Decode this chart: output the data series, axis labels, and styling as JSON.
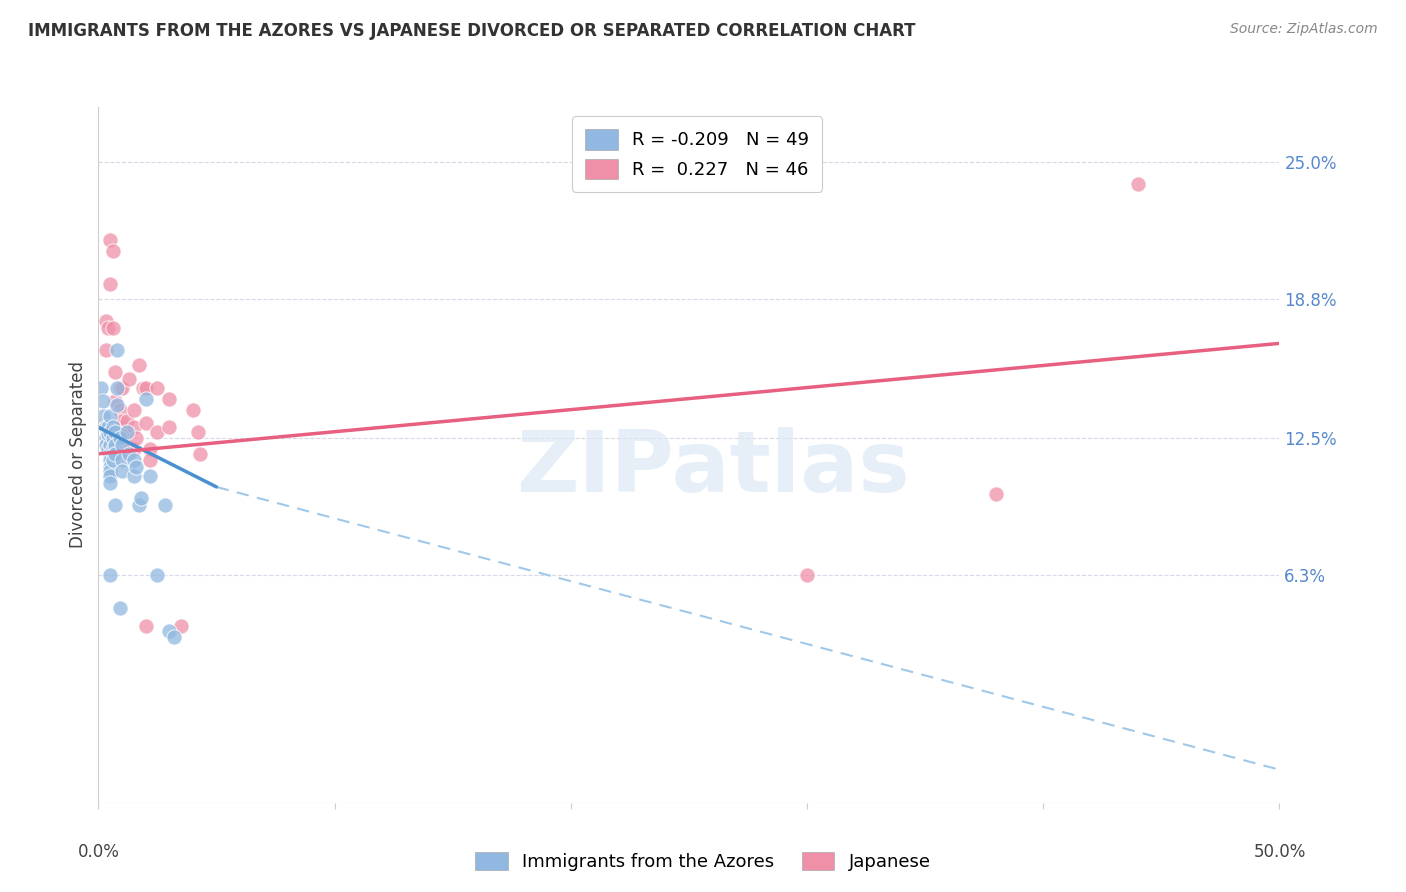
{
  "title": "IMMIGRANTS FROM THE AZORES VS JAPANESE DIVORCED OR SEPARATED CORRELATION CHART",
  "source": "Source: ZipAtlas.com",
  "ylabel": "Divorced or Separated",
  "right_axis_labels": [
    "25.0%",
    "18.8%",
    "12.5%",
    "6.3%"
  ],
  "legend_entries": [
    {
      "label_r": "R = -0.209",
      "label_n": "N = 49",
      "color": "#a8c8ea"
    },
    {
      "label_r": "R =  0.227",
      "label_n": "N = 46",
      "color": "#f4a8b8"
    }
  ],
  "watermark": "ZIPatlas",
  "azores_color": "#90b8e0",
  "japanese_color": "#f090a8",
  "azores_scatter": [
    [
      0.001,
      0.148
    ],
    [
      0.002,
      0.142
    ],
    [
      0.002,
      0.135
    ],
    [
      0.003,
      0.13
    ],
    [
      0.003,
      0.125
    ],
    [
      0.003,
      0.122
    ],
    [
      0.004,
      0.13
    ],
    [
      0.004,
      0.127
    ],
    [
      0.004,
      0.12
    ],
    [
      0.005,
      0.135
    ],
    [
      0.005,
      0.128
    ],
    [
      0.005,
      0.122
    ],
    [
      0.005,
      0.118
    ],
    [
      0.005,
      0.115
    ],
    [
      0.005,
      0.112
    ],
    [
      0.005,
      0.11
    ],
    [
      0.005,
      0.108
    ],
    [
      0.005,
      0.105
    ],
    [
      0.006,
      0.13
    ],
    [
      0.006,
      0.125
    ],
    [
      0.006,
      0.12
    ],
    [
      0.006,
      0.118
    ],
    [
      0.006,
      0.115
    ],
    [
      0.007,
      0.128
    ],
    [
      0.007,
      0.122
    ],
    [
      0.007,
      0.118
    ],
    [
      0.008,
      0.165
    ],
    [
      0.008,
      0.148
    ],
    [
      0.008,
      0.14
    ],
    [
      0.009,
      0.125
    ],
    [
      0.01,
      0.122
    ],
    [
      0.01,
      0.115
    ],
    [
      0.01,
      0.11
    ],
    [
      0.012,
      0.128
    ],
    [
      0.013,
      0.118
    ],
    [
      0.015,
      0.115
    ],
    [
      0.015,
      0.108
    ],
    [
      0.016,
      0.112
    ],
    [
      0.017,
      0.095
    ],
    [
      0.018,
      0.098
    ],
    [
      0.02,
      0.143
    ],
    [
      0.022,
      0.108
    ],
    [
      0.025,
      0.063
    ],
    [
      0.028,
      0.095
    ],
    [
      0.03,
      0.038
    ],
    [
      0.005,
      0.063
    ],
    [
      0.007,
      0.095
    ],
    [
      0.009,
      0.048
    ],
    [
      0.032,
      0.035
    ]
  ],
  "japanese_scatter": [
    [
      0.003,
      0.178
    ],
    [
      0.003,
      0.165
    ],
    [
      0.004,
      0.175
    ],
    [
      0.005,
      0.215
    ],
    [
      0.005,
      0.195
    ],
    [
      0.006,
      0.21
    ],
    [
      0.006,
      0.175
    ],
    [
      0.007,
      0.155
    ],
    [
      0.007,
      0.142
    ],
    [
      0.007,
      0.13
    ],
    [
      0.008,
      0.125
    ],
    [
      0.008,
      0.12
    ],
    [
      0.009,
      0.148
    ],
    [
      0.009,
      0.138
    ],
    [
      0.009,
      0.13
    ],
    [
      0.009,
      0.12
    ],
    [
      0.01,
      0.148
    ],
    [
      0.01,
      0.133
    ],
    [
      0.01,
      0.125
    ],
    [
      0.01,
      0.118
    ],
    [
      0.011,
      0.128
    ],
    [
      0.012,
      0.133
    ],
    [
      0.012,
      0.12
    ],
    [
      0.013,
      0.152
    ],
    [
      0.015,
      0.138
    ],
    [
      0.015,
      0.13
    ],
    [
      0.015,
      0.12
    ],
    [
      0.016,
      0.125
    ],
    [
      0.017,
      0.158
    ],
    [
      0.019,
      0.148
    ],
    [
      0.02,
      0.148
    ],
    [
      0.02,
      0.132
    ],
    [
      0.022,
      0.12
    ],
    [
      0.022,
      0.115
    ],
    [
      0.025,
      0.148
    ],
    [
      0.025,
      0.128
    ],
    [
      0.03,
      0.143
    ],
    [
      0.03,
      0.13
    ],
    [
      0.035,
      0.04
    ],
    [
      0.04,
      0.138
    ],
    [
      0.042,
      0.128
    ],
    [
      0.043,
      0.118
    ],
    [
      0.44,
      0.24
    ],
    [
      0.38,
      0.1
    ],
    [
      0.3,
      0.063
    ],
    [
      0.02,
      0.04
    ]
  ],
  "azores_line_solid": {
    "x0": 0.0,
    "y0": 0.13,
    "x1": 0.05,
    "y1": 0.103
  },
  "azores_line_dash": {
    "x0": 0.05,
    "y0": 0.103,
    "x1": 0.5,
    "y1": -0.025
  },
  "japanese_line": {
    "x0": 0.0,
    "y0": 0.118,
    "x1": 0.5,
    "y1": 0.168
  },
  "xlim": [
    0.0,
    0.5
  ],
  "ylim": [
    -0.04,
    0.275
  ],
  "xticks": [
    0.0,
    0.1,
    0.2,
    0.3,
    0.4,
    0.5
  ],
  "yticks_right": [
    0.25,
    0.188,
    0.125,
    0.063
  ],
  "grid_color": "#d8d8e8",
  "background_color": "#ffffff",
  "title_fontsize": 12,
  "source_fontsize": 10,
  "axis_label_fontsize": 12,
  "tick_fontsize": 12
}
